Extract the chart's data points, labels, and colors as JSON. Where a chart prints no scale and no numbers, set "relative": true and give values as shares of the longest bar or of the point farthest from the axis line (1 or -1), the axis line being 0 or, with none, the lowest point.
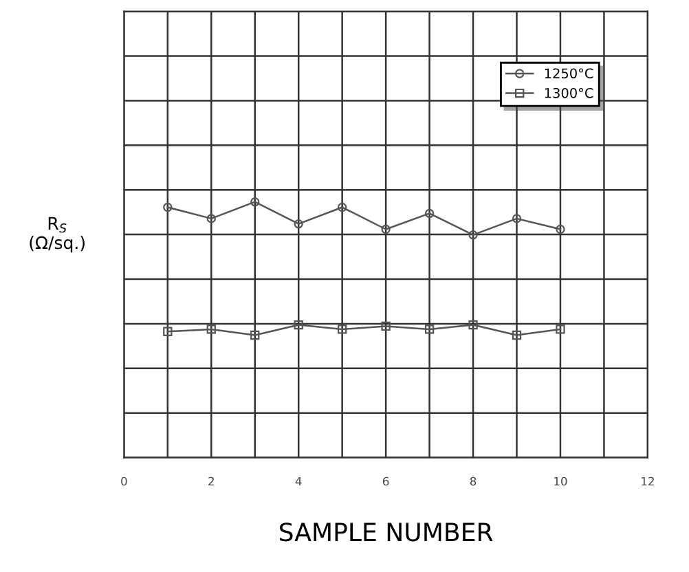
{
  "chart_data": {
    "type": "line",
    "relative": true,
    "xlabel": "SAMPLE NUMBER",
    "ylabel": "R$_{S}$\n(Ω/sq.)",
    "x": [
      1,
      2,
      3,
      4,
      5,
      6,
      7,
      8,
      9,
      10
    ],
    "xlim": [
      0,
      12
    ],
    "xticks": [
      0,
      {
        "value": 1,
        "label": null
      },
      2,
      {
        "value": 3,
        "label": null
      },
      4,
      {
        "value": 5,
        "label": null
      },
      6,
      {
        "value": 7,
        "label": null
      },
      8,
      {
        "value": 9,
        "label": null
      },
      10,
      {
        "value": 11,
        "label": null
      },
      12
    ],
    "tick_labels": "x",
    "grid": true,
    "legend": "top right",
    "line_style": "solid",
    "series": [
      {
        "name": "1250°C",
        "color": "#555555",
        "marker": "circle",
        "values": [
          0.979,
          0.935,
          1.0,
          0.914,
          0.979,
          0.893,
          0.955,
          0.871,
          0.935,
          0.893
        ]
      },
      {
        "name": "1300°C",
        "color": "#555555",
        "marker": "square",
        "values": [
          0.493,
          0.502,
          0.479,
          0.519,
          0.502,
          0.514,
          0.502,
          0.519,
          0.479,
          0.502
        ]
      }
    ]
  }
}
